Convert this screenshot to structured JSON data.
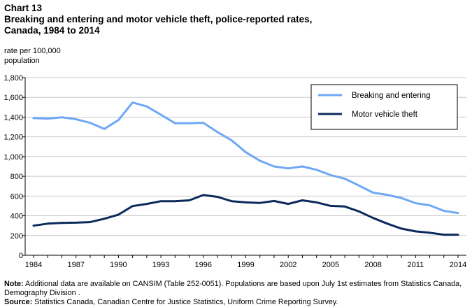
{
  "chart_data": {
    "type": "line",
    "label": "Chart 13",
    "title_line1": "Breaking and entering and motor vehicle theft, police-reported rates,",
    "title_line2": "Canada, 1984 to 2014",
    "ylabel_line1": "rate per 100,000",
    "ylabel_line2": "population",
    "xlabel": "",
    "ylim": [
      0,
      1800
    ],
    "yticks": [
      0,
      200,
      400,
      600,
      800,
      1000,
      1200,
      1400,
      1600,
      1800
    ],
    "ytick_labels": [
      "0",
      "200",
      "400",
      "600",
      "800",
      "1,000",
      "1,200",
      "1,400",
      "1,600",
      "1,800"
    ],
    "xlim": [
      1984,
      2014
    ],
    "xticks": [
      1984,
      1987,
      1990,
      1993,
      1996,
      1999,
      2002,
      2005,
      2008,
      2011,
      2014
    ],
    "xtick_labels": [
      "1984",
      "1987",
      "1990",
      "1993",
      "1996",
      "1999",
      "2002",
      "2005",
      "2008",
      "2011",
      "2014"
    ],
    "x": [
      1984,
      1985,
      1986,
      1987,
      1988,
      1989,
      1990,
      1991,
      1992,
      1993,
      1994,
      1995,
      1996,
      1997,
      1998,
      1999,
      2000,
      2001,
      2002,
      2003,
      2004,
      2005,
      2006,
      2007,
      2008,
      2009,
      2010,
      2011,
      2012,
      2013,
      2014
    ],
    "grid": true,
    "legend_position": "top-right",
    "series": [
      {
        "name": "Breaking and entering",
        "color": "#6fa8f5",
        "values": [
          1390,
          1385,
          1398,
          1378,
          1342,
          1280,
          1370,
          1548,
          1508,
          1424,
          1338,
          1337,
          1342,
          1248,
          1164,
          1044,
          958,
          900,
          880,
          900,
          866,
          812,
          776,
          706,
          634,
          612,
          580,
          528,
          506,
          450,
          428
        ]
      },
      {
        "name": "Motor vehicle theft",
        "color": "#0b2a5b",
        "values": [
          300,
          320,
          328,
          330,
          336,
          370,
          412,
          498,
          520,
          548,
          548,
          556,
          610,
          592,
          548,
          536,
          530,
          550,
          520,
          556,
          536,
          500,
          494,
          444,
          378,
          320,
          270,
          242,
          228,
          208,
          208
        ]
      }
    ]
  },
  "footer": {
    "note_label": "Note:",
    "note_text": " Additional data are available on CANSIM  (Table 252-0051).  Populations are based upon July 1st  estimates from Statistics Canada, Demography Division .",
    "source_label": "Source:",
    "source_text": " Statistics Canada, Canadian Centre for Justice Statistics, Uniform Crime Reporting Survey."
  }
}
